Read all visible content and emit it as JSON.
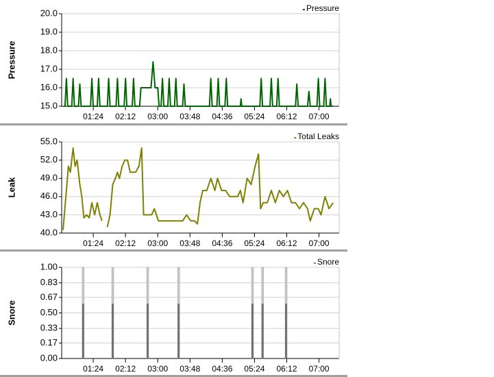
{
  "chart_data": [
    {
      "type": "line",
      "y_label": "Pressure",
      "xlim": [
        "00:37",
        "07:30"
      ],
      "xticks": [
        "01:24",
        "02:12",
        "03:00",
        "03:48",
        "04:36",
        "05:24",
        "06:12",
        "07:00"
      ],
      "ylim": [
        15,
        20
      ],
      "yticks": [
        {
          "value": 15,
          "label": "15.0"
        },
        {
          "value": 16,
          "label": "16.0"
        },
        {
          "value": 17,
          "label": "17.0"
        },
        {
          "value": 18,
          "label": "18.0"
        },
        {
          "value": 19,
          "label": "19.0"
        },
        {
          "value": 20,
          "label": "20.0"
        }
      ],
      "grid": true,
      "x": [
        "00:40",
        "00:42",
        "00:44",
        "00:46",
        "00:52",
        "00:54",
        "00:56",
        "01:02",
        "01:04",
        "01:06",
        "01:20",
        "01:22",
        "01:24",
        "01:30",
        "01:32",
        "01:34",
        "01:45",
        "01:47",
        "01:49",
        "01:58",
        "02:00",
        "02:02",
        "02:10",
        "02:12",
        "02:14",
        "02:22",
        "02:24",
        "02:26",
        "02:33",
        "02:35",
        "02:50",
        "02:53",
        "02:56",
        "03:00",
        "03:02",
        "03:05",
        "03:07",
        "03:09",
        "03:15",
        "03:17",
        "03:19",
        "03:25",
        "03:27",
        "03:29",
        "03:37",
        "03:39",
        "03:41",
        "04:17",
        "04:19",
        "04:21",
        "04:28",
        "04:30",
        "04:32",
        "04:40",
        "04:42",
        "04:44",
        "05:03",
        "05:04",
        "05:05",
        "05:32",
        "05:34",
        "05:36",
        "05:47",
        "05:49",
        "05:51",
        "05:57",
        "05:59",
        "06:01",
        "06:25",
        "06:27",
        "06:29",
        "06:43",
        "06:45",
        "06:47",
        "06:57",
        "06:59",
        "07:01",
        "07:07",
        "07:09",
        "07:11",
        "07:16",
        "07:17",
        "07:18",
        "07:21"
      ],
      "series": [
        {
          "name": "Pressure",
          "color": "#006400",
          "values": [
            15,
            15,
            16.5,
            15,
            15,
            16.5,
            15,
            15,
            16.2,
            15,
            15,
            16.5,
            15,
            15,
            16.5,
            15,
            15,
            16.5,
            15,
            15,
            16.5,
            15,
            15,
            16.5,
            15,
            15,
            16.5,
            15,
            15,
            16,
            16,
            17.4,
            16,
            16,
            15,
            15,
            16.5,
            15,
            15,
            16.5,
            15,
            15,
            16.5,
            15,
            15,
            16.2,
            15,
            15,
            16.5,
            15,
            15,
            16.5,
            15,
            15,
            16.5,
            15,
            15,
            15.4,
            15,
            15,
            16.5,
            15,
            15,
            16.5,
            15,
            15,
            16.5,
            15,
            15,
            16.2,
            15,
            15,
            15.8,
            15,
            15,
            16.5,
            15,
            15,
            16.5,
            15,
            15,
            15.4,
            15,
            15
          ]
        }
      ]
    },
    {
      "type": "line",
      "y_label": "Leak",
      "xlim": [
        "00:37",
        "07:30"
      ],
      "xticks": [
        "01:24",
        "02:12",
        "03:00",
        "03:48",
        "04:36",
        "05:24",
        "06:12",
        "07:00"
      ],
      "ylim": [
        40,
        55
      ],
      "yticks": [
        {
          "value": 40,
          "label": "40.0"
        },
        {
          "value": 43,
          "label": "43.0"
        },
        {
          "value": 46,
          "label": "46.0"
        },
        {
          "value": 49,
          "label": "49.0"
        },
        {
          "value": 52,
          "label": "52.0"
        },
        {
          "value": 55,
          "label": "55.0"
        }
      ],
      "grid": true,
      "x": [
        "00:39",
        "00:44",
        "00:47",
        "00:50",
        "00:54",
        "00:57",
        "01:00",
        "01:04",
        "01:07",
        "01:10",
        "01:14",
        "01:18",
        "01:22",
        "01:26",
        "01:30",
        "01:34",
        "01:37",
        "01:41",
        "01:45",
        "01:49",
        "01:53",
        "01:57",
        "02:00",
        "02:03",
        "02:07",
        "02:11",
        "02:15",
        "02:19",
        "02:23",
        "02:27",
        "02:32",
        "02:36",
        "02:39",
        "02:45",
        "02:51",
        "02:55",
        "03:01",
        "03:07",
        "03:13",
        "03:19",
        "03:25",
        "03:31",
        "03:37",
        "03:43",
        "03:49",
        "03:55",
        "03:59",
        "04:03",
        "04:07",
        "04:13",
        "04:19",
        "04:25",
        "04:29",
        "04:35",
        "04:41",
        "04:47",
        "04:53",
        "04:59",
        "05:03",
        "05:07",
        "05:13",
        "05:19",
        "05:25",
        "05:30",
        "05:33",
        "05:37",
        "05:43",
        "05:49",
        "05:55",
        "06:01",
        "06:07",
        "06:13",
        "06:19",
        "06:25",
        "06:31",
        "06:37",
        "06:43",
        "06:47",
        "06:53",
        "06:59",
        "07:03",
        "07:09",
        "07:15",
        "07:21"
      ],
      "series": [
        {
          "name": "Total Leaks",
          "color": "#808000",
          "values": [
            40.5,
            47,
            51,
            50,
            54,
            51,
            52,
            48,
            46,
            42.5,
            43,
            42.5,
            45,
            43,
            45,
            43,
            42,
            null,
            41,
            43,
            48,
            49,
            50,
            49,
            51,
            52,
            52,
            50,
            50,
            50,
            51,
            54,
            43,
            43,
            43,
            44,
            42,
            42,
            42,
            42,
            42,
            42,
            42,
            43,
            42,
            42,
            41.5,
            45,
            47,
            47,
            49,
            47,
            49,
            47,
            47,
            46,
            46,
            46,
            47,
            45,
            49,
            48,
            51,
            53,
            44,
            45,
            45,
            47,
            45,
            47,
            46,
            47,
            45,
            45,
            44,
            45,
            44,
            42,
            44,
            44,
            43,
            46,
            44,
            45
          ]
        }
      ]
    },
    {
      "type": "bar",
      "y_label": "Snore",
      "xlim": [
        "00:37",
        "07:30"
      ],
      "xticks": [
        "01:24",
        "02:12",
        "03:00",
        "03:48",
        "04:36",
        "05:24",
        "06:12",
        "07:00"
      ],
      "ylim": [
        0,
        1
      ],
      "yticks": [
        {
          "value": 0,
          "label": "0.00"
        },
        {
          "value": 0.17,
          "label": "0.17"
        },
        {
          "value": 0.33,
          "label": "0.33"
        },
        {
          "value": 0.5,
          "label": "0.50"
        },
        {
          "value": 0.67,
          "label": "0.67"
        },
        {
          "value": 0.83,
          "label": "0.83"
        },
        {
          "value": 1,
          "label": "1.00"
        }
      ],
      "grid": true,
      "x": [
        "01:09",
        "01:53",
        "02:45",
        "03:31",
        "05:21",
        "05:36",
        "06:11"
      ],
      "series": [
        {
          "name": "Snore",
          "color": "#808080",
          "values": [
            1,
            1,
            1,
            1,
            1,
            1,
            1
          ]
        }
      ]
    }
  ]
}
